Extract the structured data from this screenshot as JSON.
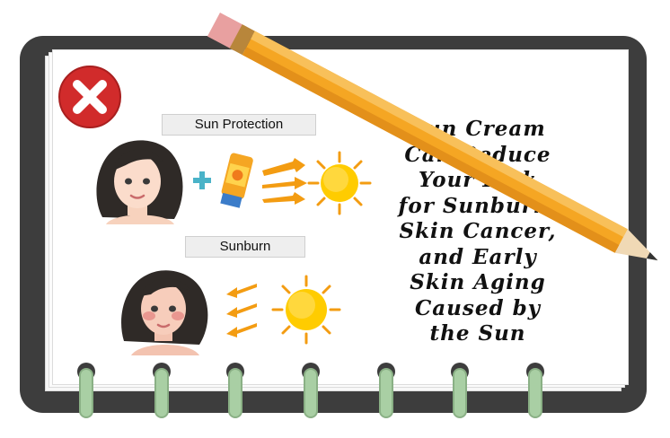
{
  "labels": {
    "sun_protection": "Sun Protection",
    "sunburn": "Sunburn"
  },
  "headline_lines": [
    "Sun Cream",
    "Can Reduce",
    "Your Risk",
    "for Sunburn,",
    "Skin Cancer,",
    "and Early",
    "Skin Aging",
    "Caused by",
    "the Sun"
  ],
  "colors": {
    "board": "#3d3d3d",
    "close_red": "#d12b2b",
    "sun_yellow": "#ffcc00",
    "ring_green": "#a9cfa4",
    "pencil_orange": "#f5a623"
  },
  "icons": [
    "close-icon",
    "pencil-icon",
    "sun-icon",
    "plus-icon",
    "sunscreen-tube-icon",
    "arrow-icon"
  ]
}
